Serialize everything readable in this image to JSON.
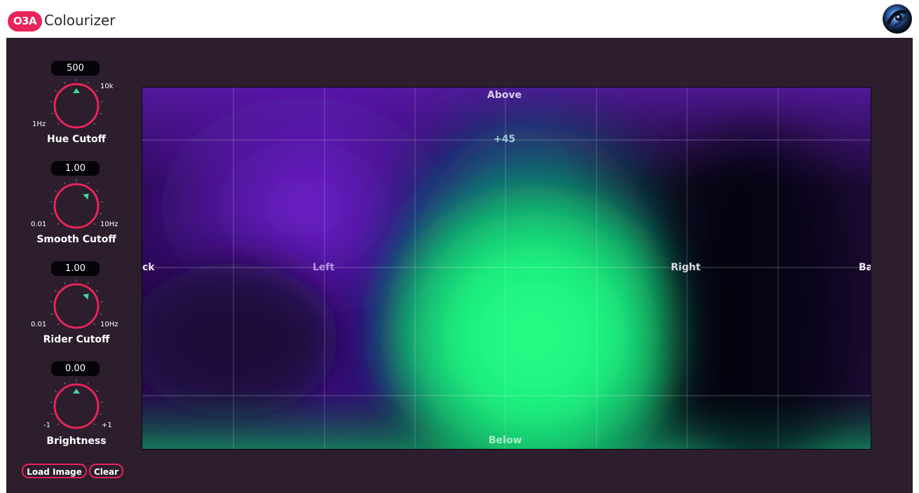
{
  "window": {
    "brand": "O3A",
    "title": "Colourizer"
  },
  "controls": [
    {
      "id": "hue",
      "value": "500",
      "min_label": "1Hz",
      "max_label": "10k",
      "label": "Hue Cutoff",
      "knob_fraction": 0.5
    },
    {
      "id": "smooth",
      "value": "1.00",
      "min_label": "0.01",
      "max_label": "10Hz",
      "label": "Smooth Cutoff",
      "knob_fraction": 0.667
    },
    {
      "id": "rider",
      "value": "1.00",
      "min_label": "0.01",
      "max_label": "10Hz",
      "label": "Rider Cutoff",
      "knob_fraction": 0.667
    },
    {
      "id": "brightness",
      "value": "0.00",
      "min_label": "-1",
      "max_label": "+1",
      "label": "Brightness",
      "knob_fraction": 0.5
    }
  ],
  "buttons": {
    "load_image": "Load Image",
    "clear": "Clear"
  },
  "display": {
    "above": "Above",
    "elevation_45": "+45",
    "left": "Left",
    "right": "Right",
    "below": "Below",
    "back_left": "ck",
    "back_right": "Ba"
  },
  "colors": {
    "accent": "#e8245a",
    "background": "#2c1e2d",
    "value_box": "#050308",
    "knob_indicator": "#3ddc97",
    "grid": "#ffffff"
  }
}
